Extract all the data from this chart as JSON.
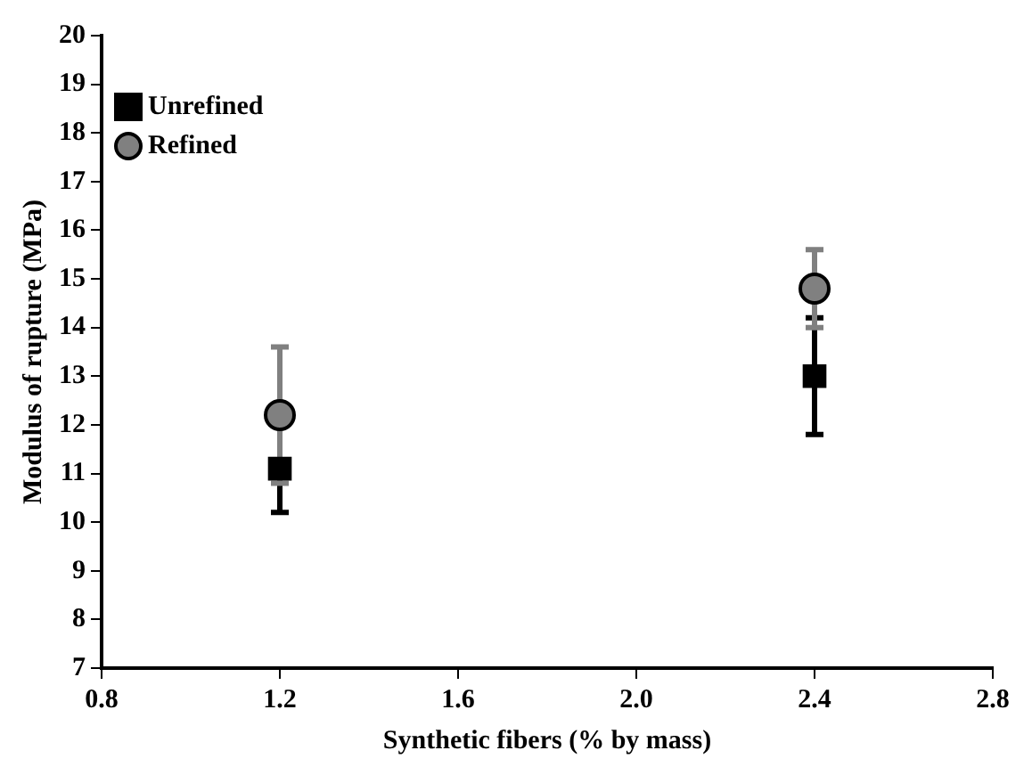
{
  "chart_data": {
    "type": "scatter",
    "xlabel": "Synthetic fibers (% by mass)",
    "ylabel": "Modulus of rupture (MPa)",
    "x": [
      1.2,
      2.4
    ],
    "series": [
      {
        "name": "Unrefined",
        "color": "#000000",
        "marker": "square",
        "values": [
          11.1,
          13.0
        ],
        "errors": [
          0.9,
          1.2
        ]
      },
      {
        "name": "Refined",
        "color": "#808080",
        "marker": "circle",
        "values": [
          12.2,
          14.8
        ],
        "errors": [
          1.4,
          0.8
        ]
      }
    ],
    "xlim": [
      0.8,
      2.8
    ],
    "xticks": [
      0.8,
      1.2,
      1.6,
      {
        "value": 2,
        "label": "2.0"
      },
      2.4,
      2.8
    ],
    "ylim": [
      7,
      20
    ],
    "yticks": [
      7,
      8,
      9,
      10,
      11,
      12,
      13,
      14,
      15,
      16,
      17,
      18,
      19,
      20
    ],
    "grid": false,
    "legend": "top left"
  }
}
